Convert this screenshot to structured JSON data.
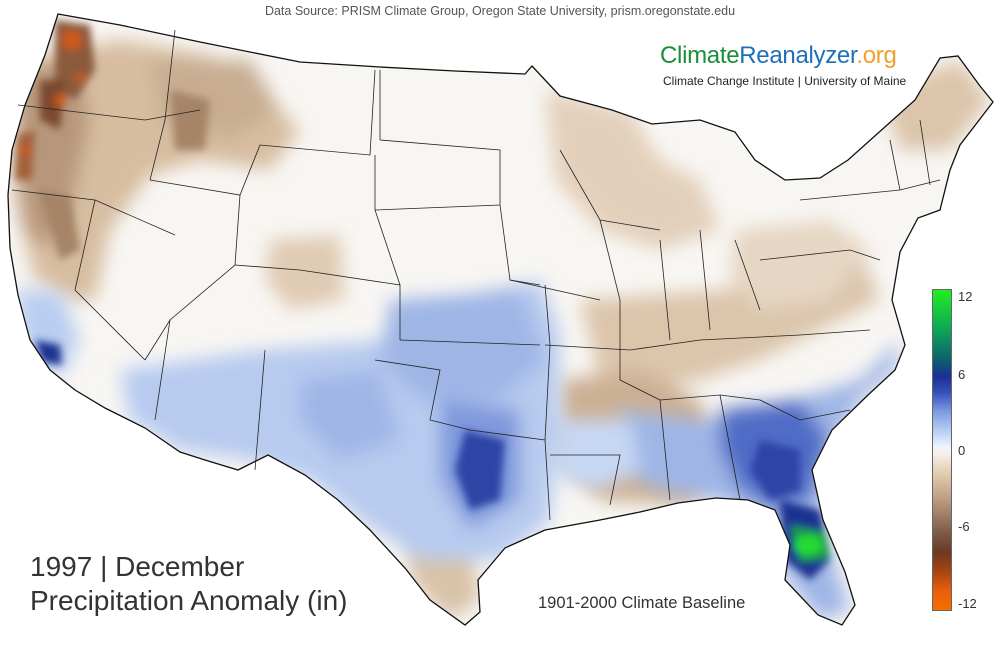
{
  "header": {
    "source": "Data Source: PRISM Climate Group, Oregon State University, prism.oregonstate.edu"
  },
  "brand": {
    "part1": "Climate",
    "part2": "Reanalyzer",
    "part3": ".org",
    "subtitle": "Climate Change Institute | University of Maine",
    "colors": {
      "part1": "#1a8f3a",
      "part2": "#1d6fb8",
      "part3": "#f0a030"
    }
  },
  "map": {
    "year_month": "1997 | December",
    "variable": "Precipitation Anomaly (in)",
    "baseline": "1901-2000 Climate Baseline",
    "region": "Contiguous United States"
  },
  "legend": {
    "ticks": [
      "12",
      "6",
      "0",
      "-6",
      "-12"
    ],
    "range": [
      -12,
      12
    ],
    "colors": {
      "wet_max": "#22ee22",
      "wet_high": "#1d2d93",
      "wet_low": "#b7cdf2",
      "neutral": "#f5f5f5",
      "dry_low": "#dfc8aa",
      "dry_high": "#6b3a20",
      "dry_max": "#f46f00"
    }
  }
}
